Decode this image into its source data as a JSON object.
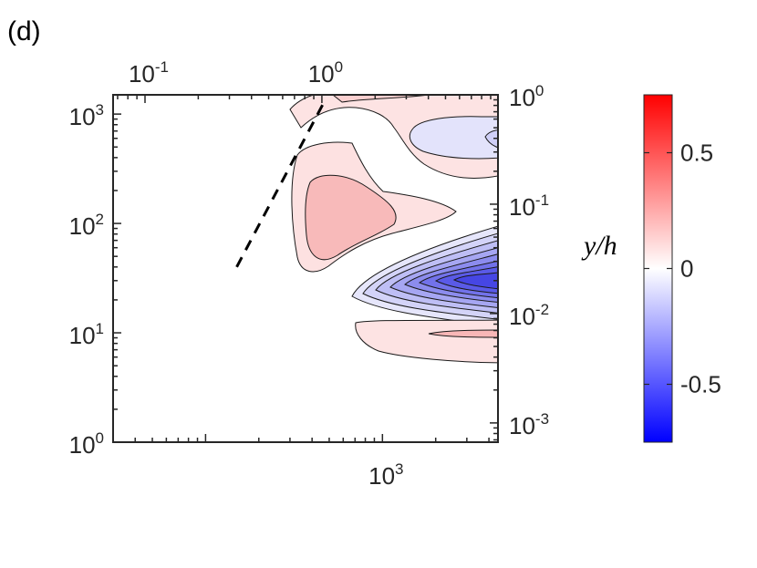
{
  "panel_label": "(d)",
  "chart_data": {
    "type": "heatmap",
    "subtype": "filled-contour",
    "title": "",
    "xlabel": "",
    "ylabel": "",
    "ylabel_right": "",
    "x_axis_bottom": {
      "scale": "log",
      "range": [
        30,
        4500
      ],
      "ticks": [
        {
          "value": 1000,
          "base": "10",
          "exp": "3"
        }
      ]
    },
    "x_axis_top": {
      "scale": "log",
      "ticks": [
        {
          "value": 0.1,
          "base": "10",
          "exp": "-1"
        },
        {
          "value": 1,
          "base": "10",
          "exp": "0"
        }
      ]
    },
    "y_axis_left": {
      "scale": "log",
      "range": [
        1,
        1500
      ],
      "ticks": [
        {
          "value": 1,
          "base": "10",
          "exp": "0"
        },
        {
          "value": 10,
          "base": "10",
          "exp": "1"
        },
        {
          "value": 100,
          "base": "10",
          "exp": "2"
        },
        {
          "value": 1000,
          "base": "10",
          "exp": "3"
        }
      ]
    },
    "y_axis_right": {
      "scale": "log",
      "ticks": [
        {
          "value": 0.001,
          "base": "10",
          "exp": "-3"
        },
        {
          "value": 0.01,
          "base": "10",
          "exp": "-2"
        },
        {
          "value": 0.1,
          "base": "10",
          "exp": "-1"
        },
        {
          "value": 1,
          "base": "10",
          "exp": "0"
        }
      ]
    },
    "dashed_line": {
      "style": "dashed",
      "color": "#000000",
      "points": [
        [
          150,
          40
        ],
        [
          475,
          1350
        ]
      ]
    },
    "contour_regions": [
      {
        "region": "upper positive band",
        "sign": "positive",
        "levels": 1,
        "peak_value": 0.1
      },
      {
        "region": "upper-right negative lobe",
        "sign": "negative",
        "levels": 2,
        "peak_value": -0.15
      },
      {
        "region": "middle positive lobe",
        "sign": "positive",
        "levels": 2,
        "peak_value": 0.2
      },
      {
        "region": "negative core",
        "sign": "negative",
        "levels": 8,
        "peak_value": -0.6
      },
      {
        "region": "lower positive band",
        "sign": "positive",
        "levels": 2,
        "peak_value": 0.1
      }
    ],
    "colorbar": {
      "range": [
        -0.75,
        0.75
      ],
      "colormap": [
        "#0000ff",
        "#ffffff",
        "#ff0000"
      ],
      "label": "y/h",
      "ticks": [
        {
          "value": 0.5,
          "label": "0.5"
        },
        {
          "value": 0,
          "label": "0"
        },
        {
          "value": -0.5,
          "label": "-0.5"
        }
      ]
    },
    "grid": false,
    "legend": "none"
  }
}
